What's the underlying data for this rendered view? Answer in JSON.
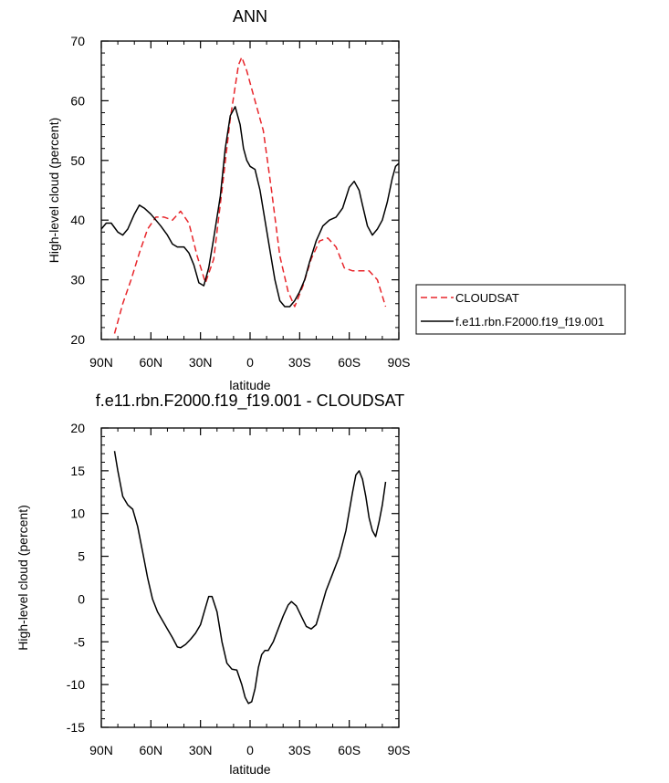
{
  "chart_data": [
    {
      "type": "line",
      "title": "ANN",
      "xlabel": "latitude",
      "ylabel": "High-level cloud (percent)",
      "xlim": [
        90,
        -90
      ],
      "ylim": [
        20,
        70
      ],
      "yticks": [
        20,
        30,
        40,
        50,
        60,
        70
      ],
      "xticks": [
        {
          "value": 90,
          "label": "90N"
        },
        {
          "value": 60,
          "label": "60N"
        },
        {
          "value": 30,
          "label": "30N"
        },
        {
          "value": 0,
          "label": "0"
        },
        {
          "value": -30,
          "label": "30S"
        },
        {
          "value": -60,
          "label": "60S"
        },
        {
          "value": -90,
          "label": "90S"
        }
      ],
      "legend_position": "right",
      "series": [
        {
          "name": "CLOUDSAT",
          "color": "#e8262b",
          "dash": "dashed",
          "x": [
            82,
            77,
            72,
            67,
            62,
            57,
            52,
            47,
            42,
            37,
            32,
            27,
            22,
            17,
            12,
            7,
            5,
            2,
            -3,
            -8,
            -13,
            -18,
            -23,
            -27,
            -32,
            -37,
            -42,
            -47,
            -52,
            -57,
            -62,
            -67,
            -72,
            -77,
            -82
          ],
          "y": [
            21,
            26,
            30,
            34.5,
            38.5,
            40.5,
            40.5,
            40,
            41.5,
            39.5,
            34,
            29.5,
            33.5,
            45,
            57,
            66,
            67.3,
            65,
            60,
            55,
            45,
            34,
            28,
            25.5,
            29,
            33.5,
            36.5,
            37,
            35.5,
            32,
            31.5,
            31.5,
            31.5,
            30,
            25.5
          ]
        },
        {
          "name": "f.e11.rbn.F2000.f19_f19.001",
          "color": "#000000",
          "dash": "solid",
          "x": [
            90,
            87,
            84,
            80,
            77,
            74,
            70,
            67,
            64,
            60,
            57,
            54,
            50,
            47,
            44,
            40,
            37,
            34,
            31,
            28,
            25,
            22,
            18,
            15,
            12,
            9,
            6,
            4,
            2,
            0,
            -3,
            -6,
            -9,
            -12,
            -15,
            -18,
            -21,
            -24,
            -27,
            -30,
            -33,
            -36,
            -40,
            -44,
            -48,
            -52,
            -56,
            -60,
            -63,
            -66,
            -68,
            -71,
            -74,
            -77,
            -80,
            -83,
            -86,
            -88,
            -90
          ],
          "y": [
            38.5,
            39.5,
            39.5,
            38,
            37.5,
            38.5,
            41,
            42.5,
            42,
            41,
            40,
            39,
            37.5,
            36,
            35.5,
            35.5,
            34.5,
            32.5,
            29.5,
            29,
            32,
            37,
            44,
            52,
            57.5,
            59,
            56,
            52,
            50,
            49,
            48.5,
            45,
            40,
            35,
            30,
            26.5,
            25.5,
            25.5,
            26.5,
            28,
            30,
            33,
            36.5,
            39,
            40,
            40.5,
            42,
            45.5,
            46.5,
            45,
            42.5,
            39,
            37.5,
            38.5,
            40,
            43,
            47,
            49,
            49.5
          ]
        }
      ]
    },
    {
      "type": "line",
      "title": "f.e11.rbn.F2000.f19_f19.001 - CLOUDSAT",
      "xlabel": "latitude",
      "ylabel": "High-level cloud (percent)",
      "xlim": [
        90,
        -90
      ],
      "ylim": [
        -15,
        20
      ],
      "yticks": [
        -15,
        -10,
        -5,
        0,
        5,
        10,
        15,
        20
      ],
      "xticks": [
        {
          "value": 90,
          "label": "90N"
        },
        {
          "value": 60,
          "label": "60N"
        },
        {
          "value": 30,
          "label": "30N"
        },
        {
          "value": 0,
          "label": "0"
        },
        {
          "value": -30,
          "label": "30S"
        },
        {
          "value": -60,
          "label": "60S"
        },
        {
          "value": -90,
          "label": "90S"
        }
      ],
      "series": [
        {
          "color": "#000000",
          "dash": "solid",
          "x": [
            82,
            80,
            77,
            74,
            71,
            68,
            65,
            62,
            59,
            56,
            53,
            50,
            47,
            44,
            42,
            39,
            36,
            33,
            30,
            27,
            25,
            23,
            20,
            17,
            14,
            11,
            8,
            5,
            3,
            1,
            -1,
            -3,
            -5,
            -7,
            -9,
            -11,
            -14,
            -17,
            -20,
            -23,
            -25,
            -28,
            -31,
            -34,
            -37,
            -40,
            -43,
            -46,
            -50,
            -54,
            -58,
            -62,
            -64,
            -66,
            -68,
            -70,
            -72,
            -74,
            -76,
            -78,
            -80,
            -82
          ],
          "y": [
            17.3,
            15,
            12,
            11,
            10.5,
            8.5,
            5.5,
            2.5,
            0,
            -1.5,
            -2.5,
            -3.5,
            -4.5,
            -5.6,
            -5.7,
            -5.3,
            -4.7,
            -4,
            -3,
            -1,
            0.3,
            0.3,
            -1.5,
            -5,
            -7.5,
            -8.2,
            -8.3,
            -10,
            -11.5,
            -12.2,
            -12,
            -10.5,
            -8,
            -6.5,
            -6,
            -6,
            -5,
            -3.5,
            -2,
            -0.7,
            -0.3,
            -0.8,
            -2,
            -3.2,
            -3.5,
            -3,
            -1,
            1,
            3,
            5,
            8,
            12.5,
            14.5,
            15,
            14,
            12,
            9.5,
            8,
            7.3,
            9,
            11,
            13.7
          ]
        }
      ]
    }
  ]
}
